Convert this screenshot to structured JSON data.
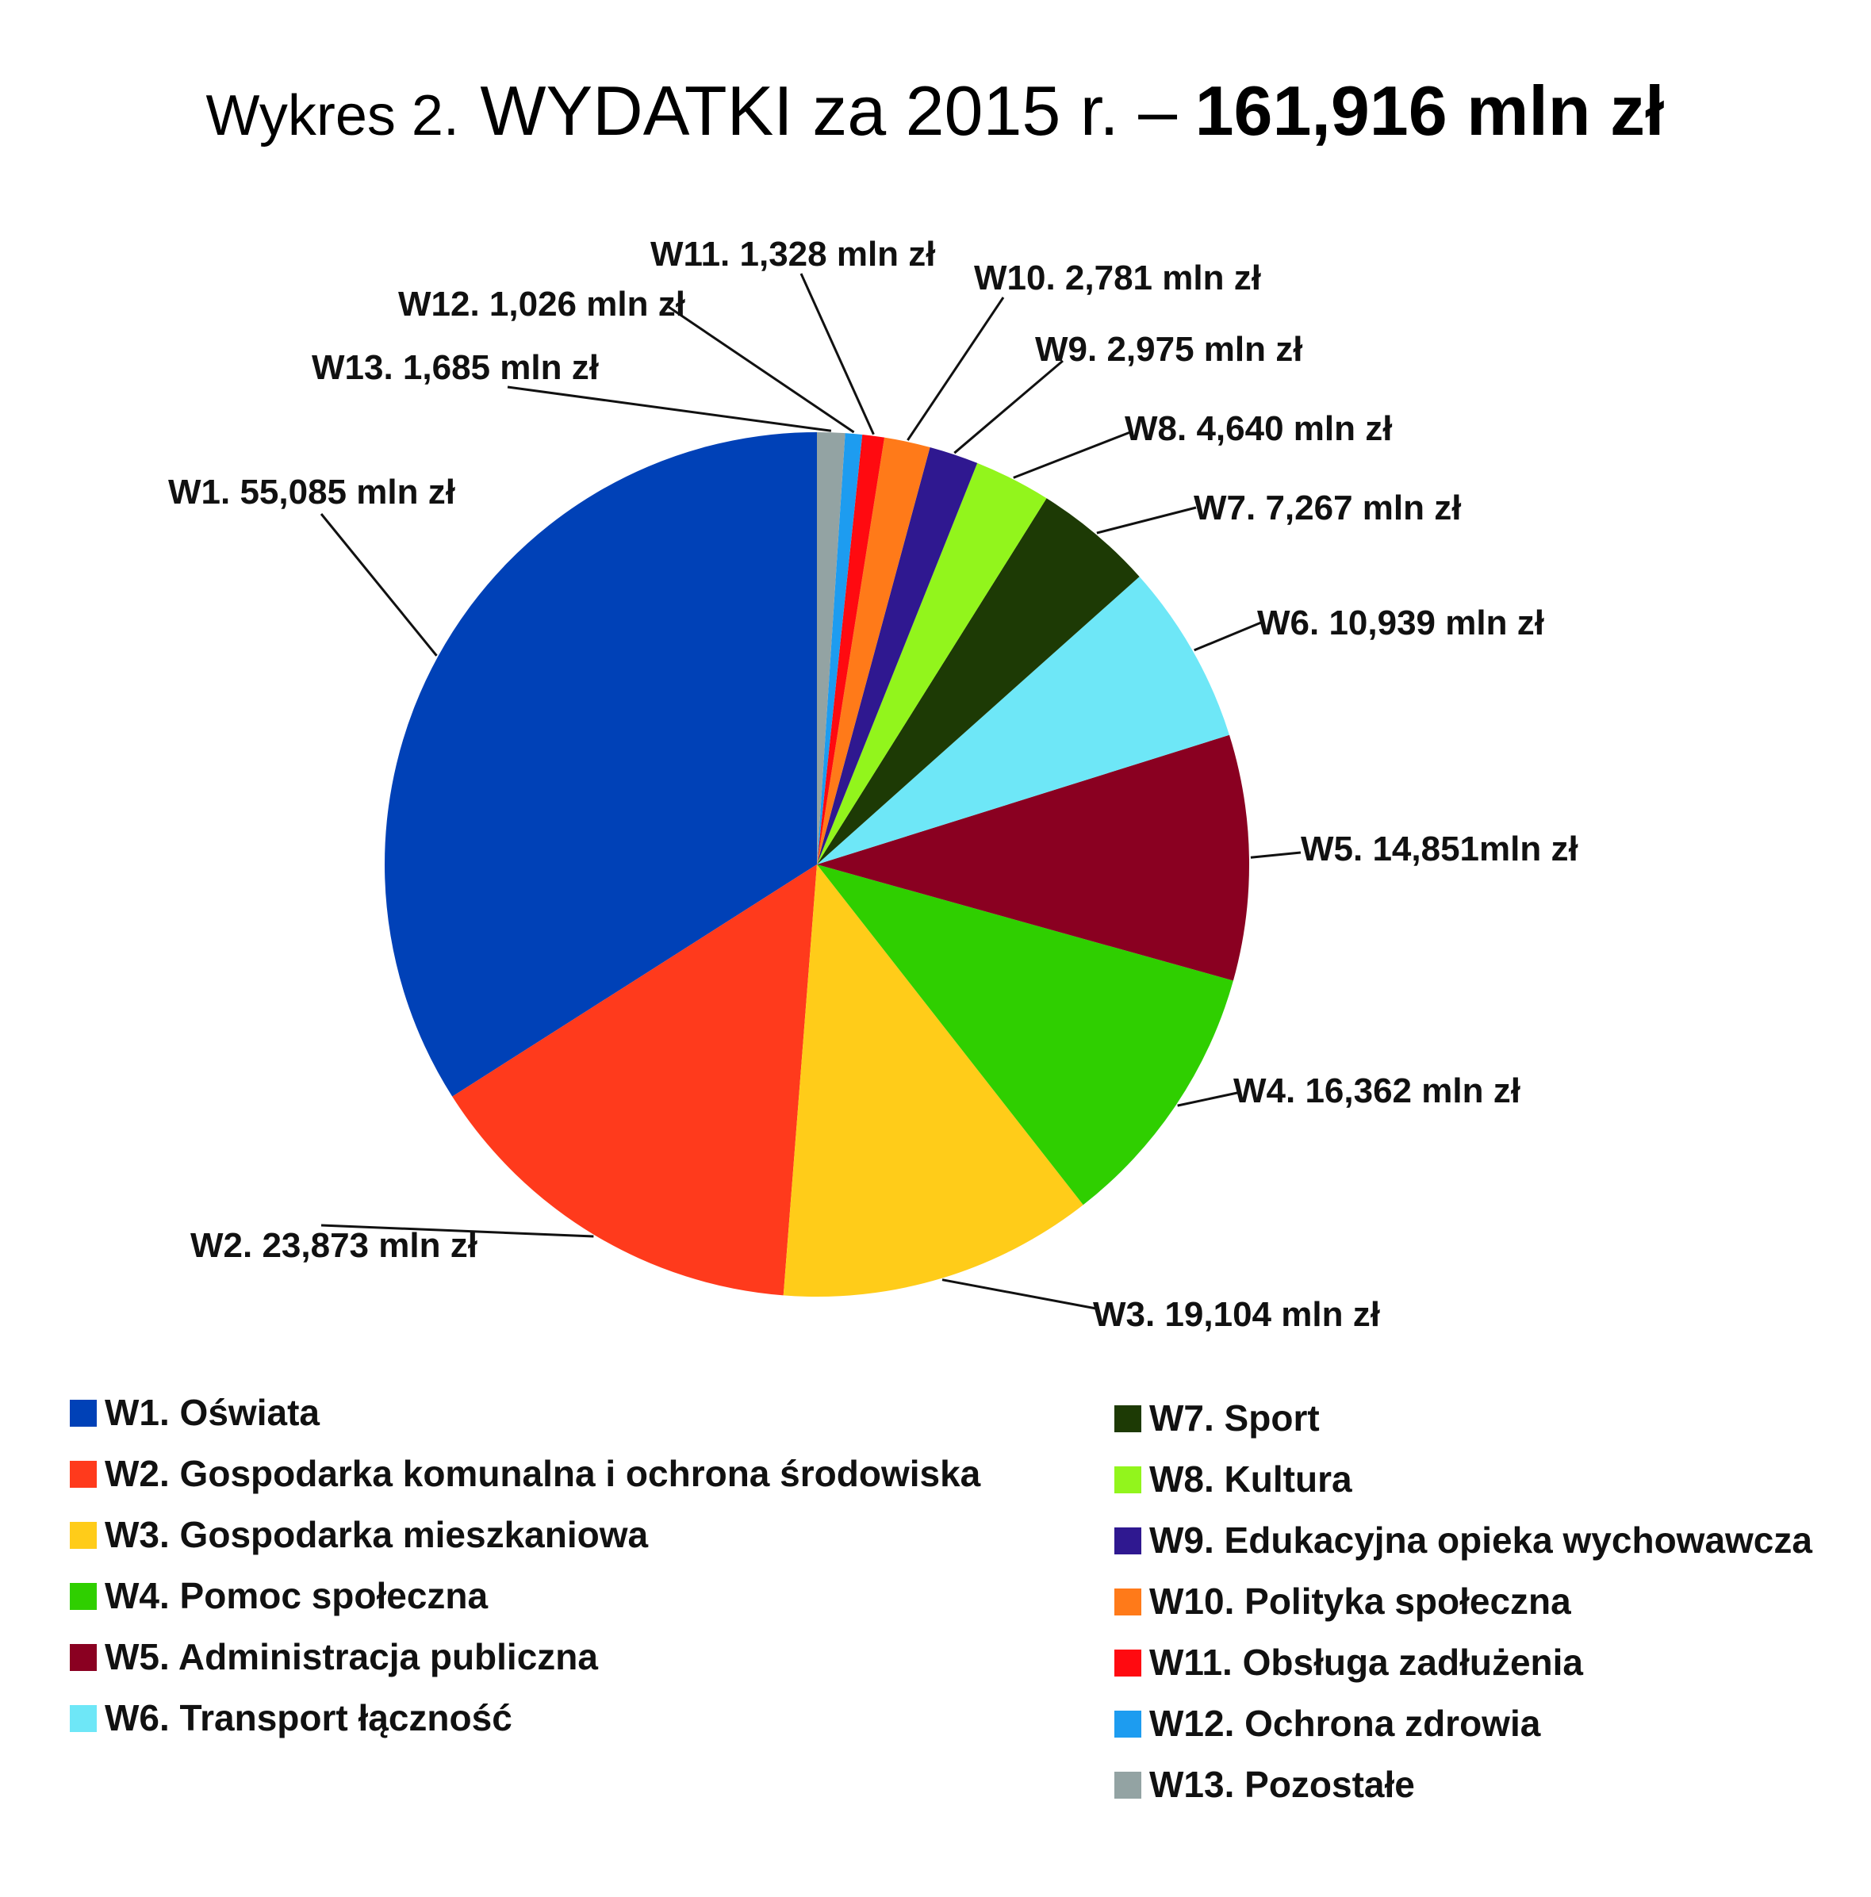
{
  "chart_data": {
    "type": "pie",
    "title_prefix": "Wykres 2.",
    "title_main": "WYDATKI za 2015 r. –",
    "title_total": "161,916 mln zł",
    "series": [
      {
        "id": "W1",
        "name": "W1. Oświata",
        "value": 55.085,
        "label": "W1. 55,085 mln zł",
        "color": "#0041b7"
      },
      {
        "id": "W2",
        "name": "W2. Gospodarka komunalna i ochrona środowiska",
        "value": 23.873,
        "label": "W2. 23,873 mln zł",
        "color": "#ff3a1c"
      },
      {
        "id": "W3",
        "name": "W3. Gospodarka mieszkaniowa",
        "value": 19.104,
        "label": "W3. 19,104 mln zł",
        "color": "#ffcc19"
      },
      {
        "id": "W4",
        "name": "W4. Pomoc społeczna",
        "value": 16.362,
        "label": "W4. 16,362 mln zł",
        "color": "#2fcf00"
      },
      {
        "id": "W5",
        "name": "W5. Administracja publiczna",
        "value": 14.851,
        "label": "W5. 14,851mln zł",
        "color": "#8a0021"
      },
      {
        "id": "W6",
        "name": "W6. Transport łączność",
        "value": 10.939,
        "label": "W6. 10,939 mln zł",
        "color": "#6ee7f7"
      },
      {
        "id": "W7",
        "name": "W7. Sport",
        "value": 7.267,
        "label": "W7. 7,267 mln zł",
        "color": "#1d3a05"
      },
      {
        "id": "W8",
        "name": "W8. Kultura",
        "value": 4.64,
        "label": "W8. 4,640 mln zł",
        "color": "#92f51c"
      },
      {
        "id": "W9",
        "name": "W9. Edukacyjna opieka wychowawcza",
        "value": 2.975,
        "label": "W9. 2,975 mln zł",
        "color": "#2f1890"
      },
      {
        "id": "W10",
        "name": "W10. Polityka społeczna",
        "value": 2.781,
        "label": "W10. 2,781 mln zł",
        "color": "#ff7a19"
      },
      {
        "id": "W11",
        "name": "W11. Obsługa zadłużenia",
        "value": 1.328,
        "label": "W11. 1,328 mln zł",
        "color": "#ff0a10"
      },
      {
        "id": "W12",
        "name": "W12. Ochrona zdrowia",
        "value": 1.026,
        "label": "W12. 1,026 mln zł",
        "color": "#1d9cf0"
      },
      {
        "id": "W13",
        "name": "W13. Pozostałe",
        "value": 1.685,
        "label": "W13. 1,685 mln zł",
        "color": "#93a3a3"
      }
    ],
    "legend_placement": "bottom, two columns"
  }
}
